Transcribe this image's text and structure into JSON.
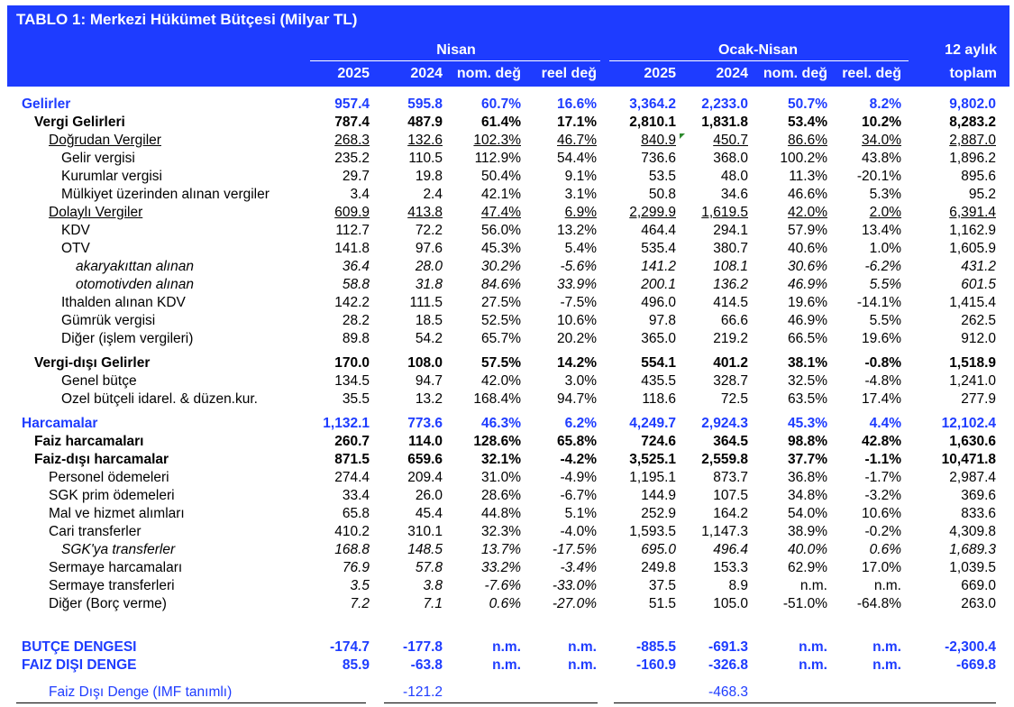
{
  "title": "TABLO 1: Merkezi Hükümet Bütçesi  (Milyar TL)",
  "header": {
    "group1": "Nisan",
    "group2": "Ocak-Nisan",
    "group3_line1": "12 aylık",
    "group3_line2": "toplam",
    "cols1": [
      "2025",
      "2024",
      "nom. değ",
      "reel değ"
    ],
    "cols2": [
      "2025",
      "2024",
      "nom. değ",
      "reel. değ"
    ]
  },
  "rows": [
    {
      "label": "Gelirler",
      "values": [
        "957.4",
        "595.8",
        "60.7%",
        "16.6%",
        "3,364.2",
        "2,233.0",
        "50.7%",
        "8.2%",
        "9,802.0"
      ]
    },
    {
      "label": "Vergi Gelirleri",
      "values": [
        "787.4",
        "487.9",
        "61.4%",
        "17.1%",
        "2,810.1",
        "1,831.8",
        "53.4%",
        "10.2%",
        "8,283.2"
      ]
    },
    {
      "label": "Doğrudan Vergiler",
      "values": [
        "268.3",
        "132.6",
        "102.3%",
        "46.7%",
        "840.9",
        "450.7",
        "86.6%",
        "34.0%",
        "2,887.0"
      ]
    },
    {
      "label": "Gelir vergisi",
      "values": [
        "235.2",
        "110.5",
        "112.9%",
        "54.4%",
        "736.6",
        "368.0",
        "100.2%",
        "43.8%",
        "1,896.2"
      ]
    },
    {
      "label": "Kurumlar vergisi",
      "values": [
        "29.7",
        "19.8",
        "50.4%",
        "9.1%",
        "53.5",
        "48.0",
        "11.3%",
        "-20.1%",
        "895.6"
      ]
    },
    {
      "label": "Mülkiyet üzerinden alınan vergiler",
      "values": [
        "3.4",
        "2.4",
        "42.1%",
        "3.1%",
        "50.8",
        "34.6",
        "46.6%",
        "5.3%",
        "95.2"
      ]
    },
    {
      "label": "Dolaylı Vergiler",
      "values": [
        "609.9",
        "413.8",
        "47.4%",
        "6.9%",
        "2,299.9",
        "1,619.5",
        "42.0%",
        "2.0%",
        "6,391.4"
      ]
    },
    {
      "label": "KDV",
      "values": [
        "112.7",
        "72.2",
        "56.0%",
        "13.2%",
        "464.4",
        "294.1",
        "57.9%",
        "13.4%",
        "1,162.9"
      ]
    },
    {
      "label": "OTV",
      "values": [
        "141.8",
        "97.6",
        "45.3%",
        "5.4%",
        "535.4",
        "380.7",
        "40.6%",
        "1.0%",
        "1,605.9"
      ]
    },
    {
      "label": "akaryakıttan alınan",
      "values": [
        "36.4",
        "28.0",
        "30.2%",
        "-5.6%",
        "141.2",
        "108.1",
        "30.6%",
        "-6.2%",
        "431.2"
      ]
    },
    {
      "label": "otomotivden alınan",
      "values": [
        "58.8",
        "31.8",
        "84.6%",
        "33.9%",
        "200.1",
        "136.2",
        "46.9%",
        "5.5%",
        "601.5"
      ]
    },
    {
      "label": "Ithalden alınan KDV",
      "values": [
        "142.2",
        "111.5",
        "27.5%",
        "-7.5%",
        "496.0",
        "414.5",
        "19.6%",
        "-14.1%",
        "1,415.4"
      ]
    },
    {
      "label": "Gümrük vergisi",
      "values": [
        "28.2",
        "18.5",
        "52.5%",
        "10.6%",
        "97.8",
        "66.6",
        "46.9%",
        "5.5%",
        "262.5"
      ]
    },
    {
      "label": "Diğer (işlem vergileri)",
      "values": [
        "89.8",
        "54.2",
        "65.7%",
        "20.2%",
        "365.0",
        "219.2",
        "66.5%",
        "19.6%",
        "912.0"
      ]
    },
    {
      "label": "Vergi-dışı Gelirler",
      "values": [
        "170.0",
        "108.0",
        "57.5%",
        "14.2%",
        "554.1",
        "401.2",
        "38.1%",
        "-0.8%",
        "1,518.9"
      ]
    },
    {
      "label": "Genel bütçe",
      "values": [
        "134.5",
        "94.7",
        "42.0%",
        "3.0%",
        "435.5",
        "328.7",
        "32.5%",
        "-4.8%",
        "1,241.0"
      ]
    },
    {
      "label": "Ozel bütçeli idarel. & düzen.kur.",
      "values": [
        "35.5",
        "13.2",
        "168.4%",
        "94.7%",
        "118.6",
        "72.5",
        "63.5%",
        "17.4%",
        "277.9"
      ]
    },
    {
      "label": "Harcamalar",
      "values": [
        "1,132.1",
        "773.6",
        "46.3%",
        "6.2%",
        "4,249.7",
        "2,924.3",
        "45.3%",
        "4.4%",
        "12,102.4"
      ]
    },
    {
      "label": "Faiz harcamaları",
      "values": [
        "260.7",
        "114.0",
        "128.6%",
        "65.8%",
        "724.6",
        "364.5",
        "98.8%",
        "42.8%",
        "1,630.6"
      ]
    },
    {
      "label": "Faiz-dışı harcamalar",
      "values": [
        "871.5",
        "659.6",
        "32.1%",
        "-4.2%",
        "3,525.1",
        "2,559.8",
        "37.7%",
        "-1.1%",
        "10,471.8"
      ]
    },
    {
      "label": "Personel ödemeleri",
      "values": [
        "274.4",
        "209.4",
        "31.0%",
        "-4.9%",
        "1,195.1",
        "873.7",
        "36.8%",
        "-1.7%",
        "2,987.4"
      ]
    },
    {
      "label": "SGK prim ödemeleri",
      "values": [
        "33.4",
        "26.0",
        "28.6%",
        "-6.7%",
        "144.9",
        "107.5",
        "34.8%",
        "-3.2%",
        "369.6"
      ]
    },
    {
      "label": "Mal ve hizmet alımları",
      "values": [
        "65.8",
        "45.4",
        "44.8%",
        "5.1%",
        "252.9",
        "164.2",
        "54.0%",
        "10.6%",
        "833.6"
      ]
    },
    {
      "label": "Cari transferler",
      "values": [
        "410.2",
        "310.1",
        "32.3%",
        "-4.0%",
        "1,593.5",
        "1,147.3",
        "38.9%",
        "-0.2%",
        "4,309.8"
      ]
    },
    {
      "label": "SGK'ya transferler",
      "values": [
        "168.8",
        "148.5",
        "13.7%",
        "-17.5%",
        "695.0",
        "496.4",
        "40.0%",
        "0.6%",
        "1,689.3"
      ]
    },
    {
      "label": "Sermaye harcamaları",
      "values": [
        "76.9",
        "57.8",
        "33.2%",
        "-3.4%",
        "249.8",
        "153.3",
        "62.9%",
        "17.0%",
        "1,039.5"
      ]
    },
    {
      "label": "Sermaye transferleri",
      "values": [
        "3.5",
        "3.8",
        "-7.6%",
        "-33.0%",
        "37.5",
        "8.9",
        "n.m.",
        "n.m.",
        "669.0"
      ]
    },
    {
      "label": "Diğer (Borç verme)",
      "values": [
        "7.2",
        "7.1",
        "0.6%",
        "-27.0%",
        "51.5",
        "105.0",
        "-51.0%",
        "-64.8%",
        "263.0"
      ]
    },
    {
      "label": "BUTÇE DENGESI",
      "values": [
        "-174.7",
        "-177.8",
        "n.m.",
        "n.m.",
        "-885.5",
        "-691.3",
        "n.m.",
        "n.m.",
        "-2,300.4"
      ]
    },
    {
      "label": "FAIZ DIŞI DENGE",
      "values": [
        "85.9",
        "-63.8",
        "n.m.",
        "n.m.",
        "-160.9",
        "-326.8",
        "n.m.",
        "n.m.",
        "-669.8"
      ]
    },
    {
      "label": "Faiz Dışı Denge (IMF tanımlı)",
      "values": [
        "",
        "-121.2",
        "",
        "",
        "",
        "-468.3",
        "",
        "",
        ""
      ]
    }
  ]
}
